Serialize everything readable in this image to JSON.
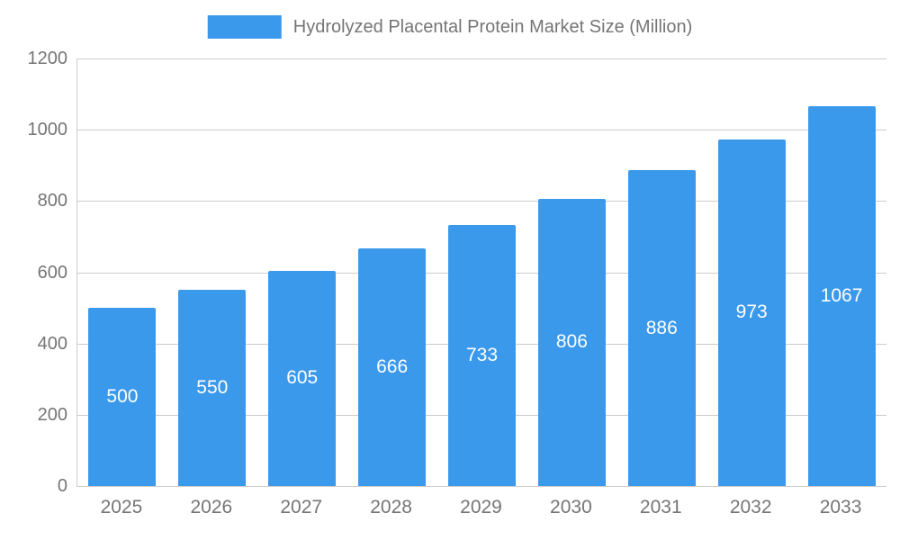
{
  "chart_data": {
    "type": "bar",
    "title": "Hydrolyzed Placental Protein Market Size (Million)",
    "categories": [
      "2025",
      "2026",
      "2027",
      "2028",
      "2029",
      "2030",
      "2031",
      "2032",
      "2033"
    ],
    "values": [
      500,
      550,
      605,
      666,
      733,
      806,
      886,
      973,
      1067
    ],
    "series": [
      {
        "name": "Hydrolyzed Placental Protein Market Size (Million)",
        "values": [
          500,
          550,
          605,
          666,
          733,
          806,
          886,
          973,
          1067
        ]
      }
    ],
    "xlabel": "",
    "ylabel": "",
    "ylim": [
      0,
      1200
    ],
    "yticks": [
      0,
      200,
      400,
      600,
      800,
      1000,
      1200
    ],
    "grid": true,
    "legend_position": "top-center",
    "value_labels": "inside-center",
    "colors": {
      "bar": "#3B99EC",
      "gridline": "#cccccc",
      "axis_text": "#757575",
      "value_label": "#ffffff",
      "background": "#ffffff"
    }
  }
}
